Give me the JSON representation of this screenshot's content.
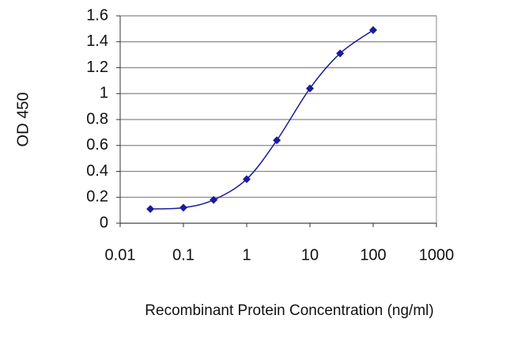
{
  "chart_data": {
    "type": "line",
    "x_label": "Recombinant Protein Concentration (ng/ml)",
    "y_label": "OD 450",
    "x": [
      0.03,
      0.1,
      0.3,
      1,
      3,
      10,
      30,
      100
    ],
    "series": [
      {
        "color": "#1a1a9e",
        "values": [
          0.11,
          0.12,
          0.18,
          0.34,
          0.64,
          1.04,
          1.31,
          1.49
        ]
      }
    ],
    "xscale": "log",
    "xlim": [
      0.01,
      1000
    ],
    "xticks": [
      0.01,
      0.1,
      1,
      10,
      100,
      1000
    ],
    "ylim": [
      0,
      1.6
    ],
    "yticks": [
      0,
      0.2,
      0.4,
      0.6,
      0.8,
      1,
      1.2,
      1.4,
      1.6
    ],
    "grid": true
  }
}
